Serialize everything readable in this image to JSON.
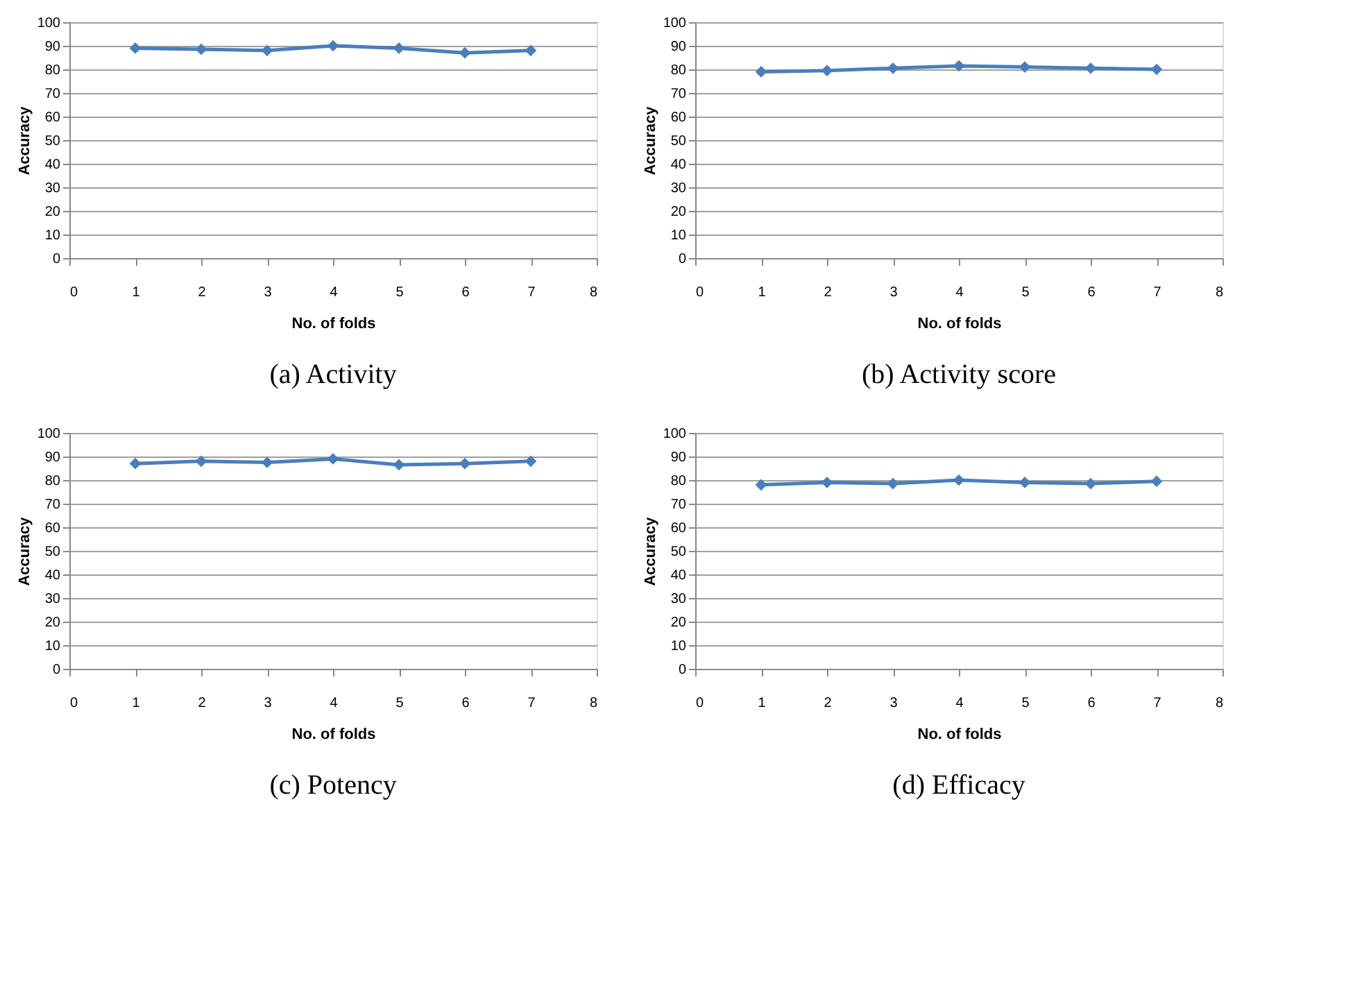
{
  "chart_data": [
    {
      "type": "line",
      "title": "(a) Activity",
      "xlabel": "No. of folds",
      "ylabel": "Accuracy",
      "x": [
        1,
        2,
        3,
        4,
        5,
        6,
        7
      ],
      "series": [
        {
          "color": "#4a7ebb",
          "values": [
            89,
            88.5,
            88,
            90,
            89,
            87,
            88
          ]
        }
      ],
      "xlim": [
        0,
        8
      ],
      "xticks": [
        0,
        1,
        2,
        3,
        4,
        5,
        6,
        7,
        8
      ],
      "ylim": [
        0,
        100
      ],
      "yticks": [
        0,
        10,
        20,
        30,
        40,
        50,
        60,
        70,
        80,
        90,
        100
      ],
      "grid": "y",
      "marker": "diamond",
      "line_style": "solid"
    },
    {
      "type": "line",
      "title": "(b) Activity score",
      "xlabel": "No. of folds",
      "ylabel": "Accuracy",
      "x": [
        1,
        2,
        3,
        4,
        5,
        6,
        7
      ],
      "series": [
        {
          "color": "#4a7ebb",
          "values": [
            79,
            79.5,
            80.5,
            81.5,
            81,
            80.5,
            80
          ]
        }
      ],
      "xlim": [
        0,
        8
      ],
      "xticks": [
        0,
        1,
        2,
        3,
        4,
        5,
        6,
        7,
        8
      ],
      "ylim": [
        0,
        100
      ],
      "yticks": [
        0,
        10,
        20,
        30,
        40,
        50,
        60,
        70,
        80,
        90,
        100
      ],
      "grid": "y",
      "marker": "diamond",
      "line_style": "solid"
    },
    {
      "type": "line",
      "title": "(c) Potency",
      "xlabel": "No. of folds",
      "ylabel": "Accuracy",
      "x": [
        1,
        2,
        3,
        4,
        5,
        6,
        7
      ],
      "series": [
        {
          "color": "#4a7ebb",
          "values": [
            87,
            88,
            87.5,
            89,
            86.5,
            87,
            88
          ]
        }
      ],
      "xlim": [
        0,
        8
      ],
      "xticks": [
        0,
        1,
        2,
        3,
        4,
        5,
        6,
        7,
        8
      ],
      "ylim": [
        0,
        100
      ],
      "yticks": [
        0,
        10,
        20,
        30,
        40,
        50,
        60,
        70,
        80,
        90,
        100
      ],
      "grid": "y",
      "marker": "diamond",
      "line_style": "solid"
    },
    {
      "type": "line",
      "title": "(d) Efficacy",
      "xlabel": "No. of folds",
      "ylabel": "Accuracy",
      "x": [
        1,
        2,
        3,
        4,
        5,
        6,
        7
      ],
      "series": [
        {
          "color": "#4a7ebb",
          "values": [
            78,
            79,
            78.5,
            80,
            79,
            78.5,
            79.5
          ]
        }
      ],
      "xlim": [
        0,
        8
      ],
      "xticks": [
        0,
        1,
        2,
        3,
        4,
        5,
        6,
        7,
        8
      ],
      "ylim": [
        0,
        100
      ],
      "yticks": [
        0,
        10,
        20,
        30,
        40,
        50,
        60,
        70,
        80,
        90,
        100
      ],
      "grid": "y",
      "marker": "diamond",
      "line_style": "solid"
    }
  ]
}
